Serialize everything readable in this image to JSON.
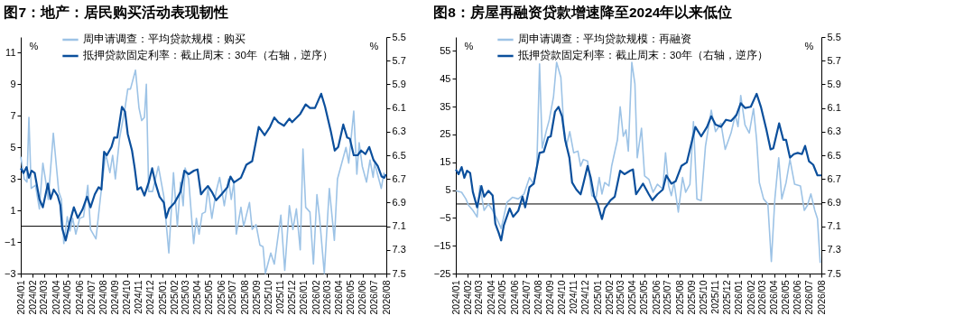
{
  "chart_data": [
    {
      "type": "line",
      "title": "图7：地产：居民购买活动表现韧性",
      "ylabel": "%",
      "y2label": "%",
      "legend": "top left",
      "xlim": [
        "2024-01-01",
        "2026-08-01"
      ],
      "xticks": [
        {
          "value": "2024-01",
          "label": "2024/01"
        },
        {
          "value": "2024-02",
          "label": "2024/02"
        },
        {
          "value": "2024-03",
          "label": "2024/03"
        },
        {
          "value": "2024-04",
          "label": "2024/04"
        },
        {
          "value": "2024-05",
          "label": "2024/05"
        },
        {
          "value": "2024-06",
          "label": "2024/06"
        },
        {
          "value": "2024-07",
          "label": "2024/07"
        },
        {
          "value": "2024-08",
          "label": "2024/08"
        },
        {
          "value": "2024-09",
          "label": "2024/09"
        },
        {
          "value": "2024-10",
          "label": "2024/10"
        },
        {
          "value": "2024-11",
          "label": "2024/11"
        },
        {
          "value": "2024-12",
          "label": "2024/12"
        },
        {
          "value": "2025-01",
          "label": "2025/01"
        },
        {
          "value": "2025-02",
          "label": "2025/02"
        },
        {
          "value": "2025-03",
          "label": "2025/03"
        },
        {
          "value": "2025-04",
          "label": "2025/04"
        },
        {
          "value": "2025-05",
          "label": "2025/05"
        },
        {
          "value": "2025-06",
          "label": "2025/06"
        },
        {
          "value": "2025-07",
          "label": "2025/07"
        },
        {
          "value": "2025-08",
          "label": "2025/08"
        },
        {
          "value": "2025-09",
          "label": "2025/09"
        },
        {
          "value": "2025-10",
          "label": "2025/10"
        },
        {
          "value": "2025-11",
          "label": "2025/11"
        },
        {
          "value": "2025-12",
          "label": "2025/12"
        },
        {
          "value": "2026-01",
          "label": "2026/01"
        },
        {
          "value": "2026-02",
          "label": "2026/02"
        },
        {
          "value": "2026-03",
          "label": "2026/03"
        },
        {
          "value": "2026-04",
          "label": "2026/04"
        },
        {
          "value": "2026-05",
          "label": "2026/05"
        },
        {
          "value": "2026-06",
          "label": "2026/06"
        },
        {
          "value": "2026-07",
          "label": "2026/07"
        },
        {
          "value": "2026-08",
          "label": "2026/08"
        }
      ],
      "ylim": [
        -3,
        12
      ],
      "yticks": [
        -3,
        -1,
        1,
        3,
        5,
        7,
        9,
        11
      ],
      "y2lim": [
        7.5,
        5.5
      ],
      "y2ticks": [
        5.5,
        5.7,
        5.9,
        6.1,
        6.3,
        6.5,
        6.7,
        6.9,
        7.1,
        7.3,
        7.5
      ],
      "ref_lines": [
        {
          "axis": "y",
          "value": 0,
          "color": "#000000"
        }
      ],
      "series": [
        {
          "name": "周申请调查：平均贷款规模：购买",
          "color": "#9dc3e6",
          "x": [
            "2024-01-01",
            "2024-01-10",
            "2024-01-17",
            "2024-01-22",
            "2024-01-28",
            "2024-02-08",
            "2024-02-18",
            "2024-02-27",
            "2024-03-07",
            "2024-03-12",
            "2024-03-25",
            "2024-04-08",
            "2024-04-15",
            "2024-04-21",
            "2024-04-30",
            "2024-05-07",
            "2024-05-14",
            "2024-05-22",
            "2024-06-01",
            "2024-06-11",
            "2024-06-22",
            "2024-06-29",
            "2024-07-13",
            "2024-07-24",
            "2024-08-07",
            "2024-08-18",
            "2024-08-25",
            "2024-09-01",
            "2024-09-12",
            "2024-09-26",
            "2024-10-03",
            "2024-10-10",
            "2024-10-23",
            "2024-11-01",
            "2024-11-08",
            "2024-11-15",
            "2024-11-20",
            "2024-11-26",
            "2024-12-06",
            "2024-12-21",
            "2025-01-04",
            "2025-01-17",
            "2025-01-29",
            "2025-02-08",
            "2025-02-16",
            "2025-02-23",
            "2025-02-28",
            "2025-03-09",
            "2025-03-22",
            "2025-03-29",
            "2025-04-05",
            "2025-04-13",
            "2025-04-21",
            "2025-04-28",
            "2025-05-08",
            "2025-05-19",
            "2025-05-28",
            "2025-06-09",
            "2025-06-20",
            "2025-06-27",
            "2025-07-04",
            "2025-07-10",
            "2025-07-22",
            "2025-07-29",
            "2025-08-13",
            "2025-08-20",
            "2025-08-30",
            "2025-09-09",
            "2025-09-17",
            "2025-09-23",
            "2025-10-07",
            "2025-10-16",
            "2025-11-02",
            "2025-11-12",
            "2025-11-24",
            "2025-12-03",
            "2025-12-12",
            "2025-12-22",
            "2025-12-29",
            "2026-01-05",
            "2026-01-16",
            "2026-01-25",
            "2026-02-03",
            "2026-02-10",
            "2026-02-22",
            "2026-03-07",
            "2026-03-20",
            "2026-03-28",
            "2026-04-19",
            "2026-04-26",
            "2026-05-09",
            "2026-05-17",
            "2026-05-23",
            "2026-05-31",
            "2026-06-11",
            "2026-06-20",
            "2026-06-28",
            "2026-07-02",
            "2026-07-19",
            "2026-07-26"
          ],
          "values": [
            4.4,
            3.0,
            2.8,
            6.9,
            2.4,
            2.6,
            1.1,
            4.0,
            2.6,
            1.7,
            5.9,
            2.2,
            1.7,
            -1.1,
            0.6,
            -0.3,
            0.5,
            -0.5,
            0.5,
            0.6,
            2.6,
            -0.2,
            -0.8,
            1.7,
            4.6,
            3.4,
            4.5,
            3.0,
            5.6,
            7.5,
            8.7,
            8.7,
            9.9,
            7.5,
            6.7,
            6.9,
            9.0,
            2.2,
            2.2,
            3.8,
            1.9,
            -1.7,
            3.4,
            0.0,
            2.8,
            1.3,
            3.7,
            3.0,
            -1.1,
            0.5,
            -0.5,
            0.8,
            0.9,
            2.4,
            0.5,
            2.2,
            3.1,
            1.3,
            3.0,
            1.7,
            2.8,
            -0.5,
            1.2,
            0.0,
            1.5,
            -0.2,
            0.1,
            -1.2,
            -1.3,
            -3.0,
            -1.7,
            -2.4,
            0.7,
            -2.8,
            1.3,
            -0.2,
            1.1,
            -1.5,
            4.9,
            1.2,
            0.9,
            -2.4,
            2.0,
            0.5,
            -3.0,
            2.4,
            -0.9,
            3.0,
            5.0,
            4.0,
            7.3,
            3.3,
            5.3,
            3.8,
            2.8,
            4.2,
            3.1,
            4.0,
            2.4,
            3.4
          ]
        },
        {
          "name": "抵押贷款固定利率：截止周末：30年（右轴，逆序）",
          "color": "#0b4f9c",
          "axis": "y2",
          "x": [
            "2024-01-01",
            "2024-01-08",
            "2024-01-16",
            "2024-01-22",
            "2024-01-29",
            "2024-02-06",
            "2024-02-18",
            "2024-02-27",
            "2024-03-11",
            "2024-03-18",
            "2024-03-26",
            "2024-04-05",
            "2024-04-12",
            "2024-04-17",
            "2024-04-26",
            "2024-05-07",
            "2024-05-17",
            "2024-05-27",
            "2024-06-08",
            "2024-06-20",
            "2024-06-29",
            "2024-07-10",
            "2024-07-20",
            "2024-07-27",
            "2024-08-03",
            "2024-08-10",
            "2024-08-22",
            "2024-08-29",
            "2024-09-06",
            "2024-09-18",
            "2024-09-26",
            "2024-10-03",
            "2024-10-14",
            "2024-10-21",
            "2024-10-28",
            "2024-11-06",
            "2024-11-15",
            "2024-11-26",
            "2024-12-05",
            "2024-12-13",
            "2024-12-24",
            "2025-01-04",
            "2025-01-10",
            "2025-01-18",
            "2025-02-01",
            "2025-02-16",
            "2025-02-26",
            "2025-03-09",
            "2025-03-23",
            "2025-04-01",
            "2025-04-10",
            "2025-04-17",
            "2025-04-28",
            "2025-05-08",
            "2025-05-19",
            "2025-06-02",
            "2025-06-17",
            "2025-06-25",
            "2025-07-04",
            "2025-07-22",
            "2025-08-05",
            "2025-08-20",
            "2025-09-06",
            "2025-09-21",
            "2025-10-05",
            "2025-10-16",
            "2025-10-26",
            "2025-11-10",
            "2025-11-24",
            "2025-12-01",
            "2025-12-22",
            "2026-01-05",
            "2026-01-16",
            "2026-01-29",
            "2026-02-14",
            "2026-02-24",
            "2026-03-11",
            "2026-03-21",
            "2026-03-30",
            "2026-04-12",
            "2026-04-22",
            "2026-04-29",
            "2026-05-09",
            "2026-05-19",
            "2026-05-28",
            "2026-06-08",
            "2026-06-18",
            "2026-06-29",
            "2026-07-10",
            "2026-07-20",
            "2026-07-27",
            "2026-07-31"
          ],
          "values": [
            6.61,
            6.65,
            6.6,
            6.69,
            6.63,
            6.65,
            6.87,
            6.94,
            6.74,
            6.87,
            6.79,
            6.84,
            6.92,
            7.12,
            7.22,
            7.06,
            6.94,
            7.03,
            6.96,
            6.85,
            6.94,
            6.83,
            6.77,
            6.79,
            6.47,
            6.5,
            6.43,
            6.35,
            6.35,
            6.09,
            6.13,
            6.32,
            6.46,
            6.61,
            6.79,
            6.77,
            6.84,
            6.73,
            6.61,
            6.73,
            6.85,
            6.9,
            7.03,
            6.95,
            6.9,
            6.81,
            6.63,
            6.66,
            6.63,
            6.62,
            6.83,
            6.8,
            6.76,
            6.81,
            6.88,
            6.83,
            6.77,
            6.68,
            6.73,
            6.69,
            6.58,
            6.55,
            6.26,
            6.33,
            6.26,
            6.18,
            6.22,
            6.25,
            6.19,
            6.22,
            6.15,
            6.07,
            6.1,
            6.1,
            5.98,
            6.09,
            6.3,
            6.46,
            6.43,
            6.24,
            6.35,
            6.36,
            6.5,
            6.5,
            6.46,
            6.49,
            6.43,
            6.54,
            6.59,
            6.68,
            6.69,
            6.66
          ]
        }
      ]
    },
    {
      "type": "line",
      "title": "图8：房屋再融资贷款增速降至2024年以来低位",
      "ylabel": "%",
      "y2label": "%",
      "legend": "top left",
      "xlim": [
        "2024-01-01",
        "2026-08-01"
      ],
      "xticks": [
        {
          "value": "2024-01",
          "label": "2024/01"
        },
        {
          "value": "2024-02",
          "label": "2024/02"
        },
        {
          "value": "2024-03",
          "label": "2024/03"
        },
        {
          "value": "2024-04",
          "label": "2024/04"
        },
        {
          "value": "2024-05",
          "label": "2024/05"
        },
        {
          "value": "2024-06",
          "label": "2024/06"
        },
        {
          "value": "2024-07",
          "label": "2024/07"
        },
        {
          "value": "2024-08",
          "label": "2024/08"
        },
        {
          "value": "2024-09",
          "label": "2024/09"
        },
        {
          "value": "2024-10",
          "label": "2024/10"
        },
        {
          "value": "2024-11",
          "label": "2024/11"
        },
        {
          "value": "2024-12",
          "label": "2024/12"
        },
        {
          "value": "2025-01",
          "label": "2025/01"
        },
        {
          "value": "2025-02",
          "label": "2025/02"
        },
        {
          "value": "2025-03",
          "label": "2025/03"
        },
        {
          "value": "2025-04",
          "label": "2025/04"
        },
        {
          "value": "2025-05",
          "label": "2025/05"
        },
        {
          "value": "2025-06",
          "label": "2025/06"
        },
        {
          "value": "2025-07",
          "label": "2025/07"
        },
        {
          "value": "2025-08",
          "label": "2025/08"
        },
        {
          "value": "2025-09",
          "label": "2025/09"
        },
        {
          "value": "2025-10",
          "label": "2025/10"
        },
        {
          "value": "2025-11",
          "label": "2025/11"
        },
        {
          "value": "2025-12",
          "label": "2025/12"
        },
        {
          "value": "2026-01",
          "label": "2026/01"
        },
        {
          "value": "2026-02",
          "label": "2026/02"
        },
        {
          "value": "2026-03",
          "label": "2026/03"
        },
        {
          "value": "2026-04",
          "label": "2026/04"
        },
        {
          "value": "2026-05",
          "label": "2026/05"
        },
        {
          "value": "2026-06",
          "label": "2026/06"
        },
        {
          "value": "2026-07",
          "label": "2026/07"
        },
        {
          "value": "2026-08",
          "label": "2026/08"
        }
      ],
      "ylim": [
        -25,
        60
      ],
      "yticks": [
        -25,
        -15,
        -5,
        5,
        15,
        25,
        35,
        45,
        55
      ],
      "y2lim": [
        7.5,
        5.5
      ],
      "y2ticks": [
        5.5,
        5.7,
        5.9,
        6.1,
        6.3,
        6.5,
        6.7,
        6.9,
        7.1,
        7.3,
        7.5
      ],
      "ref_lines": [
        {
          "axis": "y",
          "value": 0,
          "color": "#000000"
        }
      ],
      "series": [
        {
          "name": "周申请调查：平均贷款规模：再融资",
          "color": "#9dc3e6",
          "x": [
            "2024-01-01",
            "2024-01-16",
            "2024-01-27",
            "2024-02-03",
            "2024-02-14",
            "2024-02-25",
            "2024-03-03",
            "2024-03-14",
            "2024-03-25",
            "2024-04-05",
            "2024-04-16",
            "2024-04-27",
            "2024-05-12",
            "2024-05-26",
            "2024-06-10",
            "2024-06-25",
            "2024-07-09",
            "2024-07-20",
            "2024-07-28",
            "2024-08-04",
            "2024-08-11",
            "2024-08-22",
            "2024-08-29",
            "2024-09-09",
            "2024-09-17",
            "2024-09-28",
            "2024-10-05",
            "2024-10-12",
            "2024-10-21",
            "2024-10-31",
            "2024-11-11",
            "2024-11-18",
            "2024-11-25",
            "2024-12-06",
            "2024-12-17",
            "2024-12-28",
            "2025-01-05",
            "2025-01-12",
            "2025-01-19",
            "2025-01-30",
            "2025-02-06",
            "2025-02-21",
            "2025-02-28",
            "2025-03-08",
            "2025-03-15",
            "2025-03-21",
            "2025-03-30",
            "2025-04-07",
            "2025-04-13",
            "2025-04-24",
            "2025-05-02",
            "2025-05-13",
            "2025-05-24",
            "2025-06-04",
            "2025-06-18",
            "2025-06-25",
            "2025-07-03",
            "2025-07-10",
            "2025-07-17",
            "2025-07-28",
            "2025-08-08",
            "2025-08-16",
            "2025-08-27",
            "2025-09-05",
            "2025-09-14",
            "2025-09-25",
            "2025-10-06",
            "2025-10-21",
            "2025-11-01",
            "2025-11-15",
            "2025-11-26",
            "2025-12-11",
            "2025-12-22",
            "2025-12-29",
            "2026-01-05",
            "2026-01-16",
            "2026-01-27",
            "2026-02-07",
            "2026-02-15",
            "2026-02-22",
            "2026-03-05",
            "2026-03-16",
            "2026-03-25",
            "2026-04-03",
            "2026-04-13",
            "2026-04-21",
            "2026-05-02",
            "2026-05-12",
            "2026-05-24",
            "2026-06-08",
            "2026-06-18",
            "2026-06-26",
            "2026-07-05",
            "2026-07-15",
            "2026-07-22",
            "2026-07-29"
          ],
          "values": [
            4.8,
            4.2,
            1.8,
            -0.5,
            -2.3,
            -4.7,
            6.5,
            -2.3,
            0.0,
            -2.3,
            -5.3,
            -8.8,
            0.6,
            2.4,
            1.8,
            3.6,
            9.5,
            7.1,
            13.6,
            50.3,
            20.1,
            26.6,
            30.2,
            38.5,
            50.9,
            45.5,
            29.0,
            20.7,
            26.0,
            18.4,
            19.0,
            13.6,
            16.0,
            15.4,
            3.0,
            2.4,
            9.5,
            3.6,
            7.7,
            6.5,
            13.6,
            23.1,
            34.9,
            24.3,
            26.6,
            19.0,
            50.9,
            43.2,
            16.6,
            27.2,
            10.1,
            8.9,
            4.2,
            7.1,
            5.4,
            18.4,
            6.5,
            3.0,
            7.7,
            -2.9,
            9.5,
            4.2,
            7.1,
            29.6,
            1.8,
            1.2,
            20.7,
            33.7,
            26.0,
            29.0,
            19.6,
            25.5,
            32.0,
            27.8,
            39.0,
            28.4,
            25.5,
            34.3,
            23.1,
            7.7,
            1.8,
            0.0,
            -20.7,
            1.8,
            16.6,
            1.8,
            7.7,
            16.0,
            7.1,
            6.5,
            -2.3,
            -0.5,
            3.6,
            -2.3,
            -5.3,
            -21.2
          ]
        },
        {
          "name": "抵押贷款固定利率：截止周末：30年（右轴，逆序）",
          "color": "#0b4f9c",
          "axis": "y2",
          "x": [
            "2024-01-01",
            "2024-01-08",
            "2024-01-16",
            "2024-01-23",
            "2024-01-30",
            "2024-02-07",
            "2024-02-14",
            "2024-02-25",
            "2024-03-07",
            "2024-03-14",
            "2024-03-25",
            "2024-04-05",
            "2024-04-12",
            "2024-04-20",
            "2024-04-27",
            "2024-05-04",
            "2024-05-19",
            "2024-05-28",
            "2024-06-10",
            "2024-06-21",
            "2024-06-28",
            "2024-07-09",
            "2024-07-20",
            "2024-08-04",
            "2024-08-15",
            "2024-08-26",
            "2024-09-02",
            "2024-09-13",
            "2024-09-22",
            "2024-10-01",
            "2024-10-09",
            "2024-10-20",
            "2024-10-27",
            "2024-11-07",
            "2024-11-18",
            "2024-11-25",
            "2024-12-06",
            "2024-12-14",
            "2024-12-23",
            "2025-01-01",
            "2025-01-12",
            "2025-01-19",
            "2025-02-03",
            "2025-02-14",
            "2025-02-28",
            "2025-03-11",
            "2025-03-26",
            "2025-04-02",
            "2025-04-10",
            "2025-04-28",
            "2025-05-13",
            "2025-05-22",
            "2025-06-04",
            "2025-06-18",
            "2025-06-27",
            "2025-07-10",
            "2025-07-21",
            "2025-08-05",
            "2025-08-19",
            "2025-09-10",
            "2025-09-25",
            "2025-10-10",
            "2025-10-21",
            "2025-11-01",
            "2025-11-15",
            "2025-11-28",
            "2025-12-11",
            "2025-12-25",
            "2026-01-05",
            "2026-01-16",
            "2026-01-31",
            "2026-02-15",
            "2026-02-26",
            "2026-03-12",
            "2026-03-23",
            "2026-03-30",
            "2026-04-14",
            "2026-04-25",
            "2026-05-02",
            "2026-05-12",
            "2026-05-22",
            "2026-06-01",
            "2026-06-12",
            "2026-06-20",
            "2026-06-30",
            "2026-07-11",
            "2026-07-22",
            "2026-08-01"
          ],
          "values": [
            6.62,
            6.66,
            6.6,
            6.69,
            6.63,
            6.65,
            6.81,
            6.94,
            6.76,
            6.85,
            6.8,
            6.84,
            7.08,
            7.15,
            7.22,
            7.09,
            6.95,
            7.02,
            6.97,
            6.85,
            6.94,
            6.77,
            6.74,
            6.48,
            6.47,
            6.35,
            6.34,
            6.13,
            6.09,
            6.17,
            6.37,
            6.52,
            6.73,
            6.79,
            6.83,
            6.74,
            6.59,
            6.69,
            6.85,
            6.91,
            7.04,
            6.95,
            6.88,
            6.85,
            6.63,
            6.66,
            6.63,
            6.62,
            6.83,
            6.74,
            6.83,
            6.88,
            6.83,
            6.79,
            6.67,
            6.74,
            6.72,
            6.59,
            6.56,
            6.26,
            6.34,
            6.26,
            6.17,
            6.24,
            6.26,
            6.2,
            6.21,
            6.16,
            6.06,
            6.1,
            6.09,
            5.98,
            6.09,
            6.28,
            6.45,
            6.44,
            6.23,
            6.37,
            6.37,
            6.52,
            6.49,
            6.48,
            6.49,
            6.42,
            6.55,
            6.58,
            6.67,
            6.67
          ]
        }
      ]
    }
  ]
}
